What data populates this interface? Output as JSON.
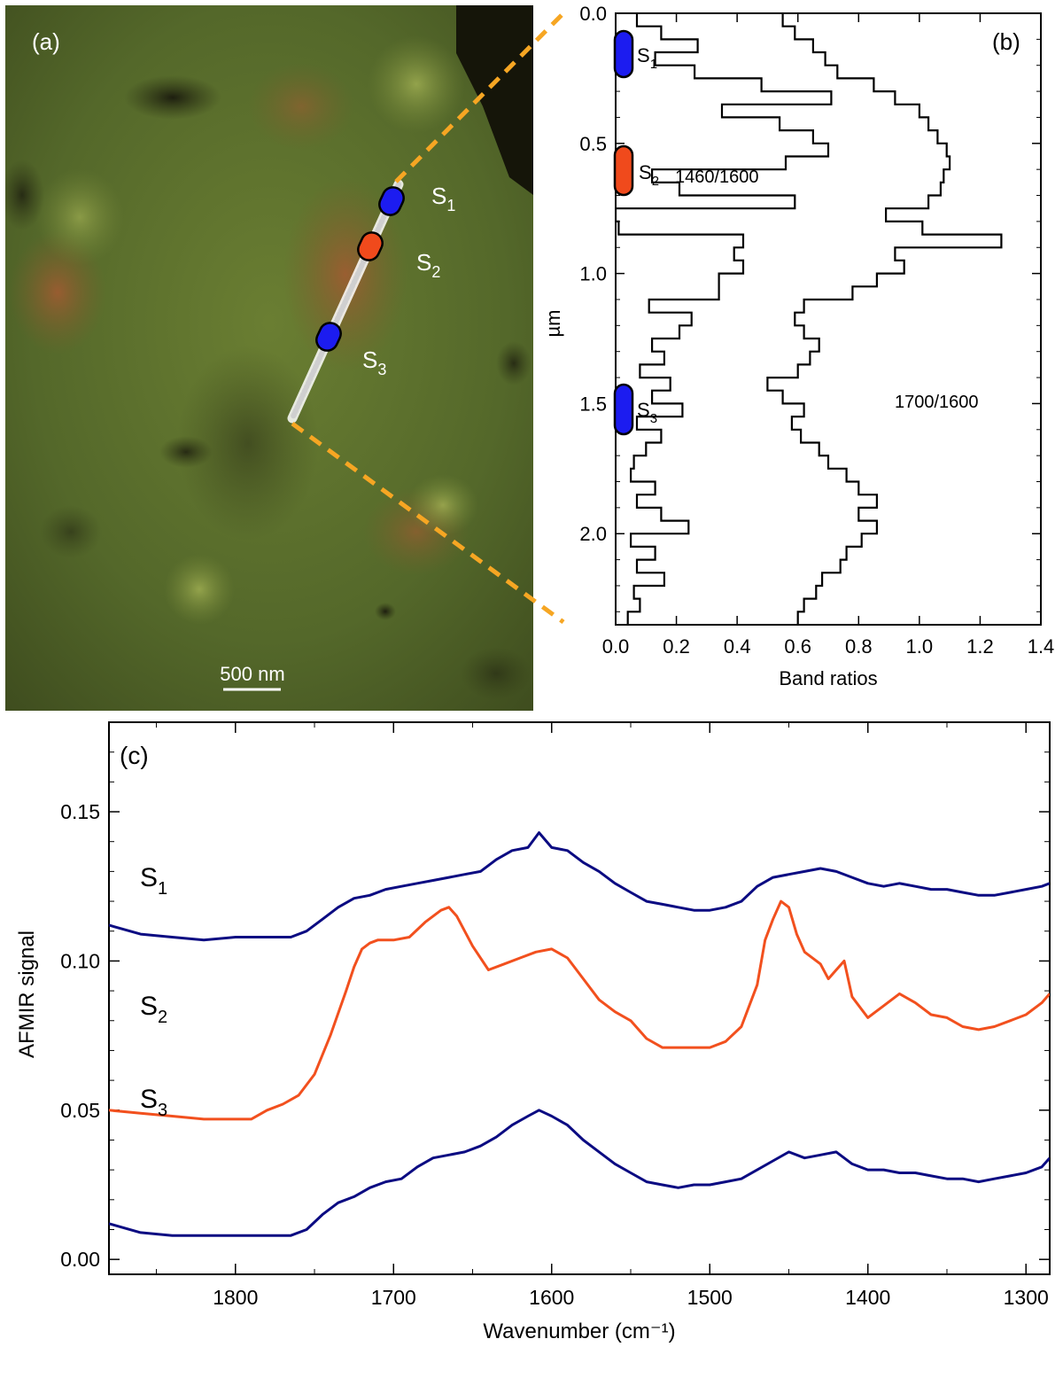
{
  "panel_a": {
    "label": "(a)",
    "scale_bar": "500 nm",
    "site_labels": [
      {
        "main": "S",
        "sub": "1"
      },
      {
        "main": "S",
        "sub": "2"
      },
      {
        "main": "S",
        "sub": "3"
      }
    ],
    "marker_colors": [
      "#1c1cf0",
      "#f04a1c",
      "#1c1cf0"
    ],
    "connector_color": "#f6a623"
  },
  "chart_data": [
    {
      "type": "line",
      "panel": "(b)",
      "style": "step",
      "xlabel": "Band ratios",
      "ylabel": "µm",
      "xlim": [
        0.0,
        1.4
      ],
      "ylim": [
        0.0,
        2.35
      ],
      "y_inverted": true,
      "xticks": [
        "0.0",
        "0.2",
        "0.4",
        "0.6",
        "0.8",
        "1.0",
        "1.2",
        "1.4"
      ],
      "yticks": [
        "0.0",
        "0.5",
        "1.0",
        "1.5",
        "2.0"
      ],
      "annotations": [
        {
          "text": "1460/1600"
        },
        {
          "text": "1700/1600"
        },
        {
          "main": "S",
          "sub": "1"
        },
        {
          "main": "S",
          "sub": "2"
        },
        {
          "main": "S",
          "sub": "3"
        }
      ],
      "series": [
        {
          "name": "1460/1600",
          "depth": [
            0.0,
            0.05,
            0.1,
            0.15,
            0.2,
            0.25,
            0.3,
            0.35,
            0.4,
            0.45,
            0.5,
            0.55,
            0.6,
            0.65,
            0.7,
            0.75,
            0.8,
            0.85,
            0.9,
            0.95,
            1.0,
            1.05,
            1.1,
            1.15,
            1.2,
            1.25,
            1.3,
            1.35,
            1.4,
            1.45,
            1.5,
            1.55,
            1.6,
            1.65,
            1.7,
            1.75,
            1.8,
            1.85,
            1.9,
            1.95,
            2.0,
            2.05,
            2.1,
            2.15,
            2.2,
            2.25,
            2.3
          ],
          "ratio": [
            0.07,
            0.15,
            0.27,
            0.13,
            0.26,
            0.48,
            0.71,
            0.35,
            0.54,
            0.65,
            0.7,
            0.56,
            0.12,
            0.21,
            0.59,
            0.0,
            0.01,
            0.42,
            0.39,
            0.42,
            0.34,
            0.34,
            0.11,
            0.25,
            0.21,
            0.12,
            0.16,
            0.08,
            0.18,
            0.12,
            0.22,
            0.07,
            0.15,
            0.1,
            0.06,
            0.05,
            0.13,
            0.07,
            0.15,
            0.24,
            0.05,
            0.13,
            0.07,
            0.16,
            0.06,
            0.08,
            0.04
          ]
        },
        {
          "name": "1700/1600",
          "depth": [
            0.0,
            0.05,
            0.1,
            0.15,
            0.2,
            0.25,
            0.3,
            0.35,
            0.4,
            0.45,
            0.5,
            0.55,
            0.6,
            0.65,
            0.7,
            0.75,
            0.8,
            0.85,
            0.9,
            0.95,
            1.0,
            1.05,
            1.1,
            1.15,
            1.2,
            1.25,
            1.3,
            1.35,
            1.4,
            1.45,
            1.5,
            1.55,
            1.6,
            1.65,
            1.7,
            1.75,
            1.8,
            1.85,
            1.9,
            1.95,
            2.0,
            2.05,
            2.1,
            2.15,
            2.2,
            2.25,
            2.3
          ],
          "ratio": [
            0.55,
            0.59,
            0.65,
            0.69,
            0.73,
            0.85,
            0.92,
            1.0,
            1.03,
            1.06,
            1.09,
            1.1,
            1.08,
            1.07,
            1.03,
            0.89,
            1.01,
            1.27,
            0.92,
            0.95,
            0.86,
            0.78,
            0.62,
            0.59,
            0.62,
            0.67,
            0.64,
            0.6,
            0.5,
            0.55,
            0.62,
            0.58,
            0.61,
            0.67,
            0.7,
            0.76,
            0.8,
            0.86,
            0.8,
            0.86,
            0.81,
            0.76,
            0.74,
            0.68,
            0.66,
            0.62,
            0.6
          ]
        }
      ]
    },
    {
      "type": "line",
      "panel": "(c)",
      "xlabel": "Wavenumber (cm⁻¹)",
      "ylabel": "AFMIR signal",
      "xlim": [
        1880,
        1285
      ],
      "ylim": [
        -0.005,
        0.18
      ],
      "x_reversed": true,
      "xticks": [
        "1800",
        "1700",
        "1600",
        "1500",
        "1400",
        "1300"
      ],
      "yticks": [
        "0.00",
        "0.05",
        "0.10",
        "0.15"
      ],
      "series": [
        {
          "label": {
            "main": "S",
            "sub": "1"
          },
          "color": "#0b0b82",
          "x": [
            1880,
            1860,
            1840,
            1820,
            1800,
            1780,
            1765,
            1755,
            1745,
            1735,
            1725,
            1715,
            1705,
            1695,
            1685,
            1675,
            1665,
            1655,
            1645,
            1635,
            1625,
            1615,
            1608,
            1600,
            1590,
            1580,
            1570,
            1560,
            1550,
            1540,
            1530,
            1520,
            1510,
            1500,
            1490,
            1480,
            1470,
            1460,
            1450,
            1440,
            1430,
            1420,
            1410,
            1400,
            1390,
            1380,
            1370,
            1360,
            1350,
            1340,
            1330,
            1320,
            1310,
            1300,
            1290,
            1285
          ],
          "y": [
            0.112,
            0.109,
            0.108,
            0.107,
            0.108,
            0.108,
            0.108,
            0.11,
            0.114,
            0.118,
            0.121,
            0.122,
            0.124,
            0.125,
            0.126,
            0.127,
            0.128,
            0.129,
            0.13,
            0.134,
            0.137,
            0.138,
            0.143,
            0.138,
            0.137,
            0.133,
            0.13,
            0.126,
            0.123,
            0.12,
            0.119,
            0.118,
            0.117,
            0.117,
            0.118,
            0.12,
            0.125,
            0.128,
            0.129,
            0.13,
            0.131,
            0.13,
            0.128,
            0.126,
            0.125,
            0.126,
            0.125,
            0.124,
            0.124,
            0.123,
            0.122,
            0.122,
            0.123,
            0.124,
            0.125,
            0.126
          ]
        },
        {
          "label": {
            "main": "S",
            "sub": "2"
          },
          "color": "#f2501e",
          "x": [
            1880,
            1860,
            1840,
            1820,
            1800,
            1790,
            1780,
            1770,
            1760,
            1750,
            1740,
            1730,
            1725,
            1720,
            1715,
            1710,
            1700,
            1690,
            1680,
            1670,
            1665,
            1660,
            1650,
            1640,
            1630,
            1620,
            1610,
            1600,
            1590,
            1580,
            1570,
            1560,
            1550,
            1540,
            1530,
            1520,
            1510,
            1500,
            1490,
            1480,
            1470,
            1465,
            1460,
            1455,
            1450,
            1445,
            1440,
            1430,
            1425,
            1420,
            1415,
            1410,
            1400,
            1390,
            1380,
            1370,
            1360,
            1350,
            1340,
            1330,
            1320,
            1310,
            1300,
            1290,
            1285
          ],
          "y": [
            0.05,
            0.049,
            0.048,
            0.047,
            0.047,
            0.047,
            0.05,
            0.052,
            0.055,
            0.062,
            0.075,
            0.09,
            0.098,
            0.104,
            0.106,
            0.107,
            0.107,
            0.108,
            0.113,
            0.117,
            0.118,
            0.115,
            0.105,
            0.097,
            0.099,
            0.101,
            0.103,
            0.104,
            0.101,
            0.094,
            0.087,
            0.083,
            0.08,
            0.074,
            0.071,
            0.071,
            0.071,
            0.071,
            0.073,
            0.078,
            0.092,
            0.107,
            0.114,
            0.12,
            0.118,
            0.109,
            0.103,
            0.099,
            0.094,
            0.097,
            0.1,
            0.088,
            0.081,
            0.085,
            0.089,
            0.086,
            0.082,
            0.081,
            0.078,
            0.077,
            0.078,
            0.08,
            0.082,
            0.086,
            0.089
          ]
        },
        {
          "label": {
            "main": "S",
            "sub": "3"
          },
          "color": "#0b0b82",
          "x": [
            1880,
            1860,
            1840,
            1820,
            1800,
            1780,
            1765,
            1755,
            1745,
            1735,
            1725,
            1715,
            1705,
            1695,
            1685,
            1675,
            1665,
            1655,
            1645,
            1635,
            1625,
            1615,
            1608,
            1600,
            1590,
            1580,
            1570,
            1560,
            1550,
            1540,
            1530,
            1520,
            1510,
            1500,
            1490,
            1480,
            1470,
            1460,
            1450,
            1440,
            1430,
            1420,
            1410,
            1400,
            1390,
            1380,
            1370,
            1360,
            1350,
            1340,
            1330,
            1320,
            1310,
            1300,
            1290,
            1285
          ],
          "y": [
            0.012,
            0.009,
            0.008,
            0.008,
            0.008,
            0.008,
            0.008,
            0.01,
            0.015,
            0.019,
            0.021,
            0.024,
            0.026,
            0.027,
            0.031,
            0.034,
            0.035,
            0.036,
            0.038,
            0.041,
            0.045,
            0.048,
            0.05,
            0.048,
            0.045,
            0.04,
            0.036,
            0.032,
            0.029,
            0.026,
            0.025,
            0.024,
            0.025,
            0.025,
            0.026,
            0.027,
            0.03,
            0.033,
            0.036,
            0.034,
            0.035,
            0.036,
            0.032,
            0.03,
            0.03,
            0.029,
            0.029,
            0.028,
            0.027,
            0.027,
            0.026,
            0.027,
            0.028,
            0.029,
            0.031,
            0.034
          ]
        }
      ]
    }
  ]
}
